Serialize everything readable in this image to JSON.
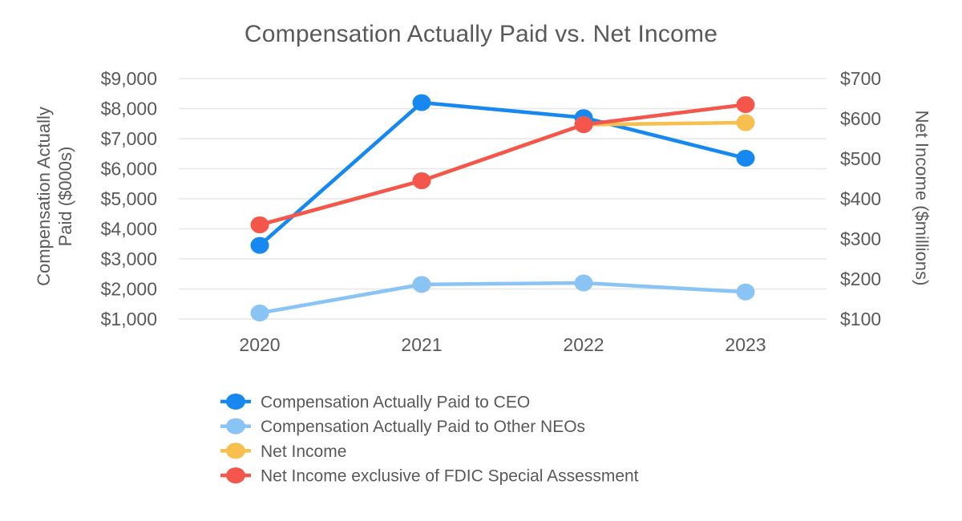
{
  "title": "Compensation Actually Paid vs. Net Income",
  "chart_data": {
    "type": "line",
    "categories": [
      "2020",
      "2021",
      "2022",
      "2023"
    ],
    "left_axis": {
      "label": "Compensation Actually Paid ($000s)",
      "label_lines": [
        "Compensation Actually",
        "Paid ($000s)"
      ],
      "min": 1000,
      "max": 9000,
      "step": 1000,
      "tick_labels": [
        "$1,000",
        "$2,000",
        "$3,000",
        "$4,000",
        "$5,000",
        "$6,000",
        "$7,000",
        "$8,000",
        "$9,000"
      ]
    },
    "right_axis": {
      "label": "Net Income ($millions)",
      "min": 100,
      "max": 700,
      "step": 100,
      "tick_labels": [
        "$100",
        "$200",
        "$300",
        "$400",
        "$500",
        "$600",
        "$700"
      ]
    },
    "series": [
      {
        "name": "Compensation Actually Paid to CEO",
        "axis": "left",
        "color": "#1688F0",
        "values": [
          3450,
          8200,
          7700,
          6350
        ]
      },
      {
        "name": "Compensation Actually Paid to Other NEOs",
        "axis": "left",
        "color": "#8AC4F4",
        "values": [
          1200,
          2150,
          2200,
          1900
        ]
      },
      {
        "name": "Net Income",
        "axis": "right",
        "color": "#F6BF4E",
        "values": [
          335,
          445,
          585,
          590
        ]
      },
      {
        "name": "Net Income exclusive of FDIC Special Assessment",
        "axis": "right",
        "color": "#F4564C",
        "values": [
          335,
          445,
          585,
          635
        ]
      }
    ],
    "grid": true,
    "legend_position": "bottom-left",
    "text_color": "#595959",
    "grid_color": "#E7E7E7",
    "background": "#FFFFFF"
  }
}
